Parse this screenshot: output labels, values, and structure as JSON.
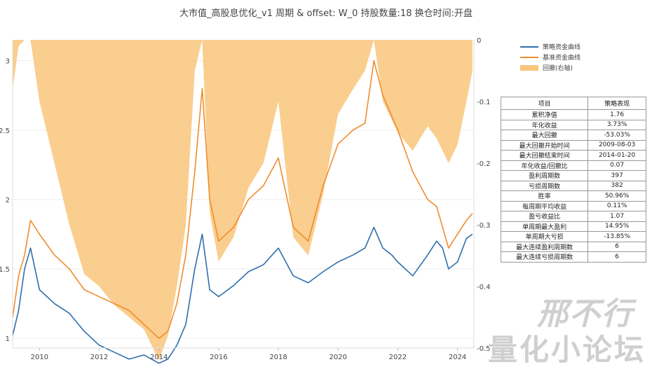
{
  "chart_data": {
    "type": "line",
    "title": "大市值_高股息优化_v1 周期 & offset: W_0 持股数量:18 换仓时间:开盘",
    "x_ticks": [
      "2010",
      "2012",
      "2014",
      "2016",
      "2018",
      "2020",
      "2022",
      "2024"
    ],
    "x_range": [
      2009.1,
      2024.55
    ],
    "y_left": {
      "ticks": [
        "1",
        "1.5",
        "2",
        "2.5",
        "3"
      ],
      "range": [
        0.93,
        3.15
      ]
    },
    "y_right": {
      "ticks": [
        "0",
        "-0.1",
        "-0.2",
        "-0.3",
        "-0.4",
        "-0.5"
      ],
      "range": [
        -0.5,
        0
      ]
    },
    "series": [
      {
        "name": "策略资金曲线",
        "axis": "left",
        "color": "#2e6fac",
        "x": [
          2009.1,
          2009.3,
          2009.5,
          2009.7,
          2010.0,
          2010.5,
          2011.0,
          2011.5,
          2012.0,
          2012.5,
          2013.0,
          2013.5,
          2014.0,
          2014.3,
          2014.6,
          2014.9,
          2015.2,
          2015.45,
          2015.7,
          2016.0,
          2016.5,
          2017.0,
          2017.5,
          2018.0,
          2018.5,
          2019.0,
          2019.5,
          2020.0,
          2020.5,
          2020.9,
          2021.2,
          2021.5,
          2021.8,
          2022.0,
          2022.5,
          2023.0,
          2023.3,
          2023.5,
          2023.7,
          2024.0,
          2024.3,
          2024.5
        ],
        "values": [
          1.02,
          1.2,
          1.5,
          1.65,
          1.35,
          1.25,
          1.18,
          1.05,
          0.95,
          0.9,
          0.85,
          0.88,
          0.82,
          0.85,
          0.95,
          1.1,
          1.5,
          1.75,
          1.35,
          1.3,
          1.38,
          1.48,
          1.53,
          1.65,
          1.45,
          1.4,
          1.48,
          1.55,
          1.6,
          1.65,
          1.8,
          1.65,
          1.6,
          1.55,
          1.45,
          1.6,
          1.7,
          1.65,
          1.5,
          1.55,
          1.72,
          1.75
        ]
      },
      {
        "name": "基准资金曲线",
        "axis": "left",
        "color": "#f08c2e",
        "x": [
          2009.1,
          2009.3,
          2009.5,
          2009.7,
          2010.0,
          2010.5,
          2011.0,
          2011.5,
          2012.0,
          2012.5,
          2013.0,
          2013.5,
          2014.0,
          2014.3,
          2014.6,
          2014.9,
          2015.2,
          2015.45,
          2015.7,
          2016.0,
          2016.5,
          2017.0,
          2017.5,
          2018.0,
          2018.5,
          2019.0,
          2019.5,
          2020.0,
          2020.5,
          2020.9,
          2021.2,
          2021.5,
          2021.8,
          2022.0,
          2022.5,
          2023.0,
          2023.3,
          2023.5,
          2023.7,
          2024.0,
          2024.3,
          2024.5
        ],
        "values": [
          1.15,
          1.45,
          1.6,
          1.85,
          1.75,
          1.6,
          1.5,
          1.35,
          1.3,
          1.25,
          1.2,
          1.1,
          1.0,
          1.05,
          1.25,
          1.6,
          2.2,
          2.8,
          2.0,
          1.7,
          1.8,
          2.0,
          2.1,
          2.3,
          1.8,
          1.7,
          2.1,
          2.4,
          2.5,
          2.55,
          3.0,
          2.75,
          2.6,
          2.5,
          2.2,
          2.0,
          1.95,
          1.8,
          1.65,
          1.75,
          1.85,
          1.9
        ]
      },
      {
        "name": "回撤(右轴)",
        "axis": "right",
        "color": "#f9c57a",
        "type": "area",
        "x": [
          2009.1,
          2009.3,
          2009.5,
          2009.7,
          2010.0,
          2010.5,
          2011.0,
          2011.5,
          2012.0,
          2012.5,
          2013.0,
          2013.5,
          2014.0,
          2014.3,
          2014.6,
          2014.9,
          2015.2,
          2015.45,
          2015.7,
          2016.0,
          2016.5,
          2017.0,
          2017.5,
          2018.0,
          2018.5,
          2019.0,
          2019.5,
          2020.0,
          2020.5,
          2020.9,
          2021.2,
          2021.5,
          2021.8,
          2022.0,
          2022.5,
          2023.0,
          2023.3,
          2023.5,
          2023.7,
          2024.0,
          2024.3,
          2024.5
        ],
        "values": [
          -0.08,
          -0.01,
          0,
          0,
          -0.1,
          -0.2,
          -0.3,
          -0.38,
          -0.4,
          -0.43,
          -0.45,
          -0.47,
          -0.52,
          -0.48,
          -0.4,
          -0.3,
          -0.05,
          0,
          -0.28,
          -0.36,
          -0.32,
          -0.24,
          -0.2,
          -0.1,
          -0.32,
          -0.35,
          -0.25,
          -0.12,
          -0.08,
          -0.05,
          0,
          -0.1,
          -0.13,
          -0.15,
          -0.18,
          -0.14,
          -0.16,
          -0.18,
          -0.2,
          -0.17,
          -0.1,
          -0.05
        ]
      }
    ]
  },
  "table": {
    "header": [
      "项目",
      "策略表现"
    ],
    "rows": [
      [
        "累积净值",
        "1.76"
      ],
      [
        "年化收益",
        "3.73%"
      ],
      [
        "最大回撤",
        "-53.03%"
      ],
      [
        "最大回撤开始时间",
        "2009-08-03"
      ],
      [
        "最大回撤结束时间",
        "2014-01-20"
      ],
      [
        "年化收益/回撤比",
        "0.07"
      ],
      [
        "盈利周期数",
        "397"
      ],
      [
        "亏损周期数",
        "382"
      ],
      [
        "胜率",
        "50.96%"
      ],
      [
        "每周期平均收益",
        "0.11%"
      ],
      [
        "盈亏收益比",
        "1.07"
      ],
      [
        "单周期最大盈利",
        "14.95%"
      ],
      [
        "单周期大亏损",
        "-13.85%"
      ],
      [
        "最大连续盈利周期数",
        "6"
      ],
      [
        "最大连续亏损周期数",
        "6"
      ]
    ]
  },
  "watermark": {
    "line1": "邢不行",
    "line2": "量化小论坛"
  }
}
